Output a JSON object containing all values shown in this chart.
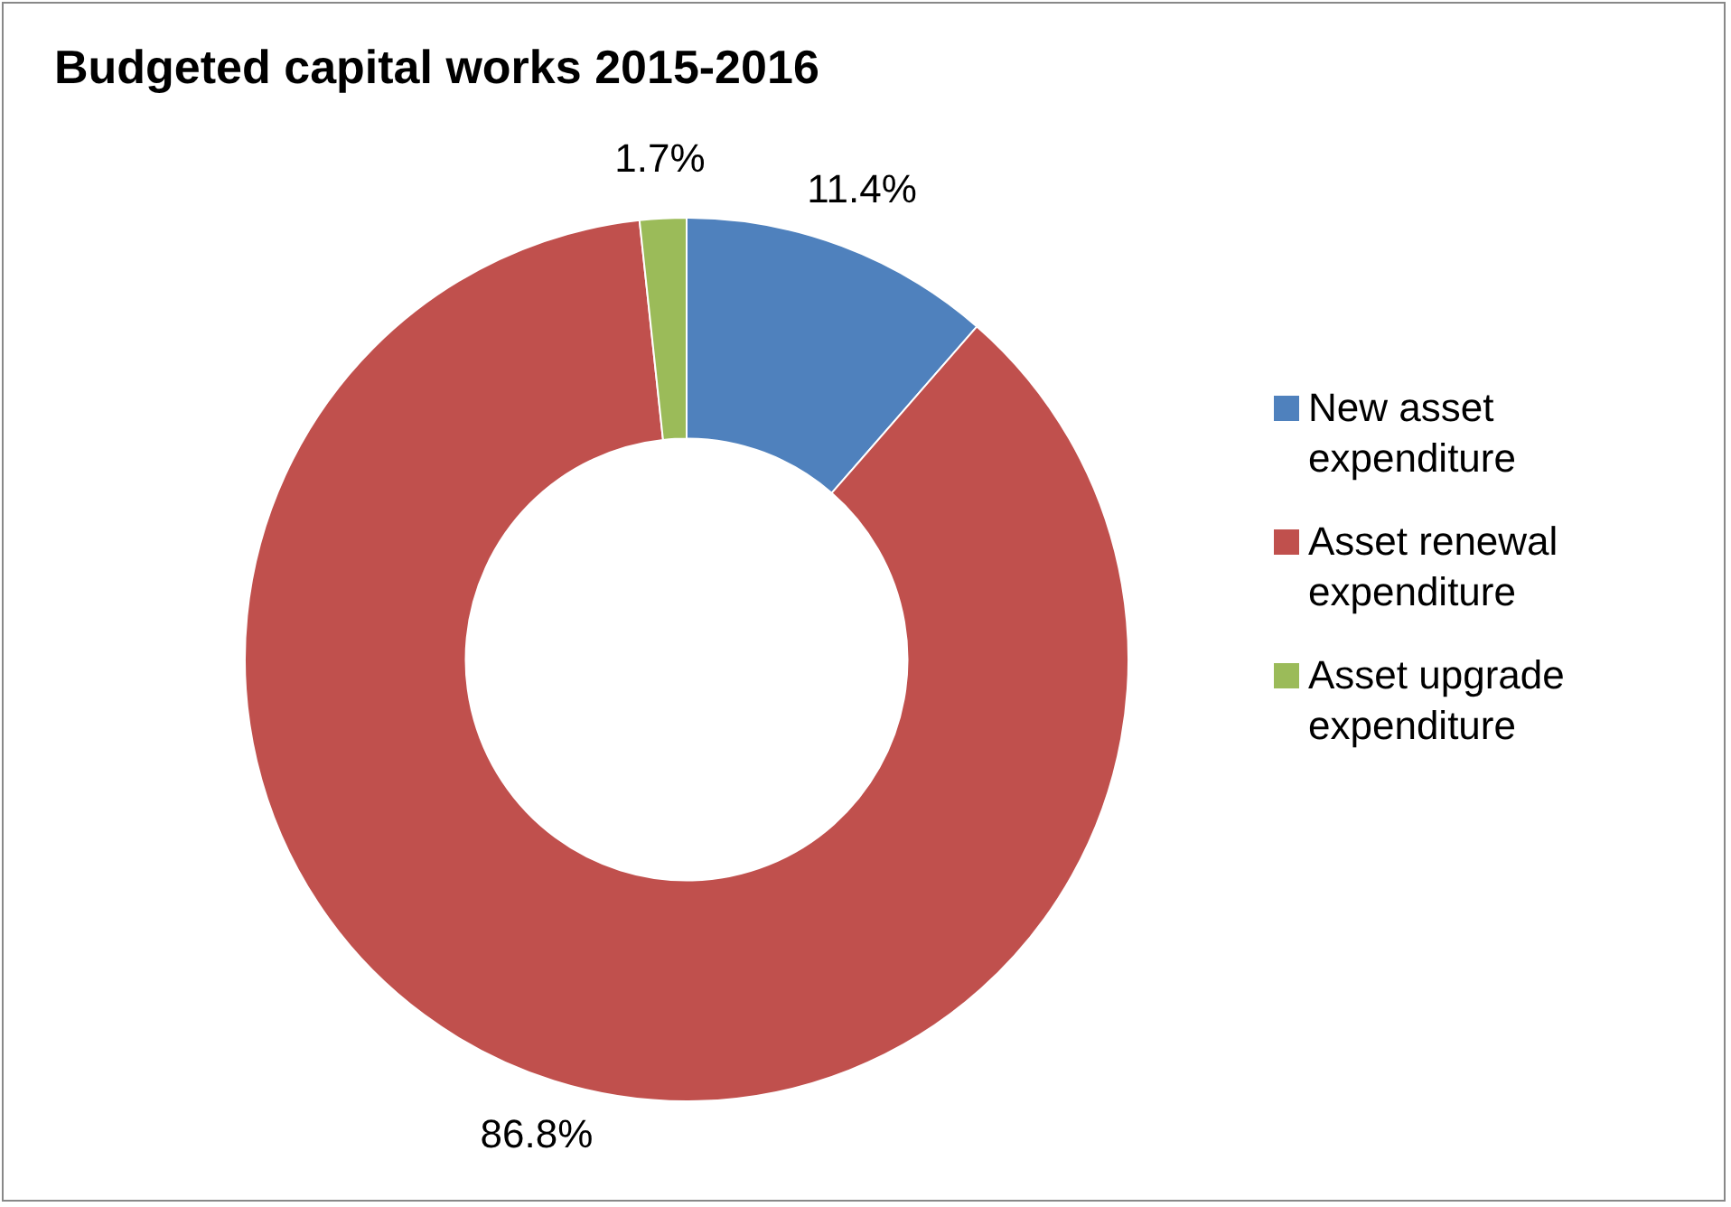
{
  "chart_data": {
    "type": "donut",
    "title": "Budgeted capital works 2015-2016",
    "categories": [
      "New asset expenditure",
      "Asset renewal expenditure",
      "Asset upgrade expenditure"
    ],
    "values": [
      11.4,
      86.8,
      1.7
    ],
    "colors": [
      "#4f81bd",
      "#c0504d",
      "#9bbb59"
    ],
    "value_labels": [
      "11.4%",
      "86.8%",
      "1.7%"
    ],
    "legend": "right"
  }
}
